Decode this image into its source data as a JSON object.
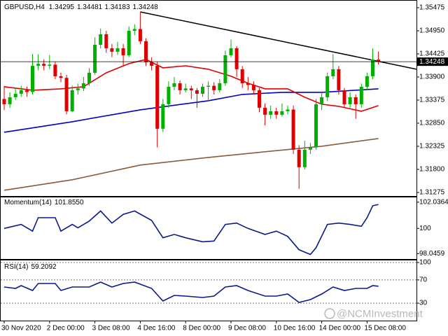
{
  "chart_data": {
    "type": "candlestick",
    "title": "GBPUSD,H4",
    "categories": [
      "30 Nov 2020",
      null,
      null,
      null,
      null,
      null,
      null,
      null,
      "2 Dec 00:00",
      null,
      null,
      null,
      null,
      null,
      null,
      null,
      "3 Dec 08:00",
      null,
      null,
      null,
      null,
      null,
      null,
      null,
      "4 Dec 16:00",
      null,
      null,
      null,
      null,
      null,
      null,
      null,
      "8 Dec 00:00",
      null,
      null,
      null,
      null,
      null,
      null,
      null,
      "9 Dec 08:00",
      null,
      null,
      null,
      null,
      null,
      null,
      null,
      "10 Dec 16:00",
      null,
      null,
      null,
      null,
      null,
      null,
      null,
      "14 Dec 00:00",
      null,
      null,
      null,
      null,
      null,
      null,
      null,
      "15 Dec 08:00",
      null,
      null
    ],
    "open": [
      1.334,
      1.33281,
      1.3344,
      1.33519,
      1.33599,
      1.3356,
      1.34155,
      1.342,
      1.34155,
      1.3418,
      1.33917,
      1.3388,
      1.33122,
      1.33599,
      1.3364,
      1.33758,
      1.33996,
      1.34632,
      1.34871,
      1.34553,
      1.34473,
      1.34553,
      1.34394,
      1.3495,
      1.3499,
      1.34712,
      1.34235,
      1.34155,
      1.32724,
      1.33281,
      1.33678,
      1.33758,
      1.33599,
      1.3364,
      1.33599,
      1.33519,
      1.33678,
      1.337,
      1.33599,
      1.33758,
      1.34394,
      1.34553,
      1.34076,
      1.33758,
      1.3372,
      1.33599,
      1.33201,
      1.33042,
      1.33122,
      1.33042,
      1.33122,
      1.3316,
      1.32247,
      1.3185,
      1.32247,
      1.323,
      1.33281,
      1.3344,
      1.33917,
      1.34076,
      1.33599,
      1.33281,
      1.3344,
      1.33281,
      1.33678,
      1.33917,
      1.34295
    ],
    "high": [
      1.337,
      1.3355,
      1.3365,
      1.337,
      1.3368,
      1.3442,
      1.3442,
      1.343,
      1.344,
      1.3425,
      1.34,
      1.3395,
      1.337,
      1.3375,
      1.339,
      1.341,
      1.348,
      1.35,
      1.3495,
      1.3465,
      1.347,
      1.3465,
      1.3505,
      1.351,
      1.3538,
      1.3478,
      1.3435,
      1.3425,
      1.334,
      1.338,
      1.339,
      1.3382,
      1.3375,
      1.337,
      1.3365,
      1.3375,
      1.338,
      1.3378,
      1.3385,
      1.345,
      1.3475,
      1.346,
      1.3415,
      1.339,
      1.338,
      1.3365,
      1.333,
      1.3325,
      1.332,
      1.333,
      1.3325,
      1.3325,
      1.3235,
      1.3245,
      1.324,
      1.334,
      1.3355,
      1.34,
      1.3442,
      1.3415,
      1.3365,
      1.3355,
      1.335,
      1.3375,
      1.34,
      1.3455,
      1.34481
    ],
    "low": [
      1.3315,
      1.332,
      1.3338,
      1.3345,
      1.3345,
      1.335,
      1.3405,
      1.3405,
      1.3408,
      1.3385,
      1.3378,
      1.3305,
      1.331,
      1.335,
      1.3358,
      1.337,
      1.3395,
      1.3455,
      1.3445,
      1.3435,
      1.344,
      1.3415,
      1.3435,
      1.3485,
      1.3465,
      1.3415,
      1.3405,
      1.323,
      1.3265,
      1.332,
      1.336,
      1.335,
      1.3355,
      1.334,
      1.332,
      1.3345,
      1.3335,
      1.335,
      1.3355,
      1.337,
      1.3435,
      1.339,
      1.3365,
      1.336,
      1.335,
      1.331,
      1.328,
      1.3295,
      1.3295,
      1.33,
      1.3305,
      1.3215,
      1.3136,
      1.318,
      1.3215,
      1.3225,
      1.3315,
      1.3335,
      1.3385,
      1.335,
      1.332,
      1.332,
      1.3295,
      1.332,
      1.336,
      1.3385,
      1.34183
    ],
    "close": [
      1.33281,
      1.3344,
      1.33519,
      1.33599,
      1.3356,
      1.34155,
      1.342,
      1.34155,
      1.3418,
      1.33917,
      1.3388,
      1.33122,
      1.33599,
      1.3364,
      1.33758,
      1.33996,
      1.34632,
      1.34871,
      1.34553,
      1.34473,
      1.34553,
      1.34394,
      1.3495,
      1.3499,
      1.34712,
      1.34235,
      1.34155,
      1.32724,
      1.33281,
      1.33678,
      1.33758,
      1.33599,
      1.3364,
      1.33599,
      1.33519,
      1.33678,
      1.337,
      1.33599,
      1.33758,
      1.34394,
      1.34553,
      1.34076,
      1.33758,
      1.3372,
      1.33599,
      1.33201,
      1.33042,
      1.33122,
      1.33042,
      1.33122,
      1.3316,
      1.32247,
      1.3185,
      1.32247,
      1.323,
      1.33281,
      1.3344,
      1.33917,
      1.34076,
      1.33599,
      1.33281,
      1.3344,
      1.33281,
      1.33678,
      1.33917,
      1.34295,
      1.34248
    ],
    "up_color": "#00b000",
    "down_color": "#e00000",
    "ylim": [
      1.31195,
      1.35634
    ],
    "yticks": [
      1.35475,
      {
        "value": 1.3495,
        "label": "1.34950"
      },
      1.34425,
      {
        "value": 1.339,
        "label": "1.33900"
      },
      1.33375,
      {
        "value": 1.3285,
        "label": "1.32850"
      },
      1.32325,
      {
        "value": 1.318,
        "label": "1.31800"
      },
      1.31275
    ],
    "overlays": [
      {
        "color": "#8b5a3c",
        "x": [
          0,
          12,
          24,
          36,
          46,
          56,
          66
        ],
        "values": [
          1.31325,
          1.31564,
          1.31898,
          1.32072,
          1.322,
          1.32327,
          1.32502
        ]
      },
      {
        "color": "#0000cc",
        "x": [
          0,
          12,
          24,
          36,
          42,
          49,
          56,
          66
        ],
        "values": [
          1.32645,
          1.32883,
          1.33154,
          1.3336,
          1.33503,
          1.33551,
          1.33551,
          1.33631
        ]
      },
      {
        "color": "#e00000",
        "x": [
          0,
          5,
          10,
          14,
          18,
          22,
          25,
          28,
          32,
          36,
          40,
          43,
          46,
          50,
          53,
          56,
          59,
          63,
          66
        ],
        "values": [
          1.33678,
          1.33599,
          1.33631,
          1.33678,
          1.33996,
          1.34203,
          1.34298,
          1.34108,
          1.34155,
          1.34076,
          1.33917,
          1.33758,
          1.33631,
          1.33631,
          1.3344,
          1.33281,
          1.33233,
          1.33122,
          1.33249
        ]
      },
      {
        "color": "#000000",
        "x": [
          24,
          72.7
        ],
        "values": [
          1.3538,
          1.34076
        ]
      }
    ],
    "panels": [
      {
        "title": "Momentum(14)",
        "current": {
          "value": 101.855,
          "label": "101.8550"
        },
        "color": "#0a1a8a",
        "grid": false,
        "ylim": [
          97.734,
          102.297
        ],
        "yticks": [
          102.0364,
          100,
          98.0459
        ],
        "x": [
          0,
          3,
          5,
          6,
          9,
          10,
          12,
          13,
          15,
          17,
          19,
          21,
          23,
          26,
          28,
          30,
          32,
          35,
          37,
          39,
          41,
          43,
          46,
          48,
          50,
          52,
          54,
          55,
          57,
          59,
          61,
          63,
          64,
          65,
          66
        ],
        "values": [
          100,
          100.31,
          99.79,
          100.83,
          100.83,
          99.79,
          100.31,
          100.05,
          100.57,
          101.35,
          100.41,
          101.09,
          101.35,
          100.62,
          99.27,
          99.53,
          99.27,
          98.96,
          99.02,
          100.31,
          100.41,
          100,
          99.53,
          99.79,
          99.38,
          98.34,
          97.98,
          98.5,
          100.31,
          100.41,
          100.31,
          100.16,
          100.83,
          101.76,
          101.855
        ]
      },
      {
        "title": "RSI(14)",
        "current": 59.2092,
        "color": "#0a1a8a",
        "grid": true,
        "ylim": [
          0,
          100
        ],
        "yticks": [
          100,
          70,
          30
        ],
        "x": [
          0,
          2,
          3,
          5,
          6,
          9,
          10,
          12,
          15,
          17,
          19,
          21,
          23,
          26,
          28,
          30,
          32,
          35,
          37,
          39,
          41,
          43,
          46,
          48,
          50,
          52,
          54,
          56,
          58,
          60,
          62,
          64,
          65,
          66
        ],
        "values": [
          57.8,
          55.4,
          60.2,
          51.8,
          63.9,
          63.9,
          51.8,
          57.8,
          57.8,
          66.3,
          57.8,
          63.9,
          66.3,
          55.4,
          33.7,
          43.4,
          42.2,
          39.8,
          42.2,
          57.8,
          60.2,
          51.8,
          42.2,
          42.2,
          45.8,
          31.3,
          36.1,
          45.8,
          57.8,
          51.8,
          55.4,
          55.4,
          60.2,
          59.2092
        ]
      }
    ],
    "watermark": "@NCMInvestment"
  }
}
